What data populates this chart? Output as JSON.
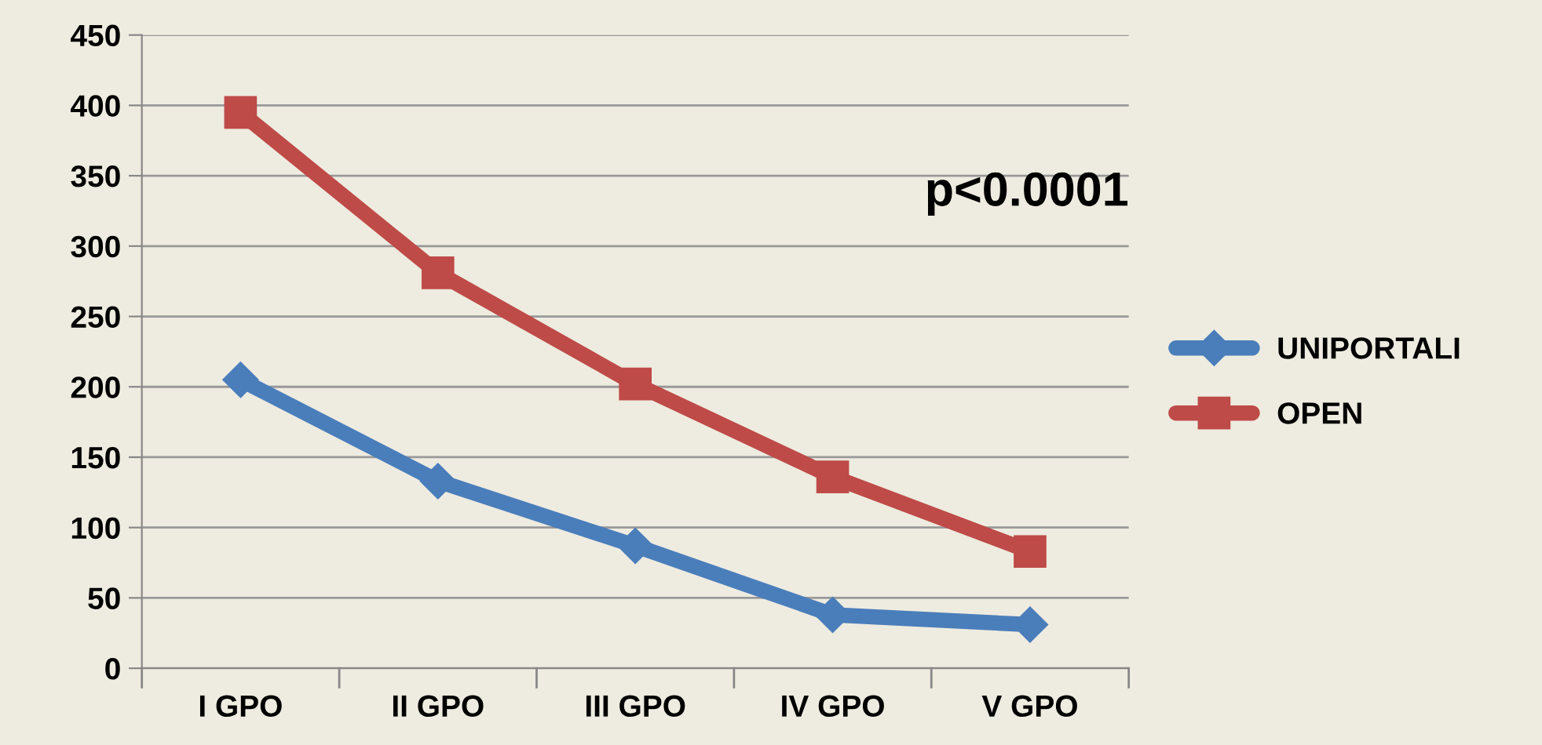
{
  "chart_data": {
    "type": "line",
    "categories": [
      "I GPO",
      "II GPO",
      "III GPO",
      "IV GPO",
      "V GPO"
    ],
    "series": [
      {
        "name": "UNIPORTALI",
        "color": "#4a7ebb",
        "marker": "diamond",
        "values": [
          205,
          133,
          87,
          38,
          31
        ]
      },
      {
        "name": "OPEN",
        "color": "#be4b48",
        "marker": "square",
        "values": [
          395,
          281,
          202,
          136,
          83
        ]
      }
    ],
    "ylim": [
      0,
      450
    ],
    "yticks": [
      0,
      50,
      100,
      150,
      200,
      250,
      300,
      350,
      400,
      450
    ],
    "grid": "y",
    "legend": "right",
    "annotations": [
      "p<0.0001"
    ],
    "line_style": "solid"
  }
}
